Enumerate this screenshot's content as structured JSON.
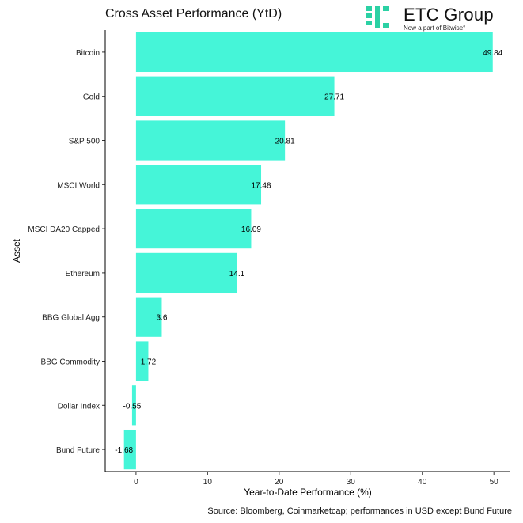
{
  "header": {
    "title": "Cross Asset Performance (YtD)",
    "logo_name": "ETC Group",
    "logo_tagline": "Now a part of Bitwise°",
    "brand_color": "#2bd1a4"
  },
  "footer": {
    "source": "Source: Bloomberg, Coinmarketcap; performances in USD except Bund Future"
  },
  "chart_data": {
    "type": "bar",
    "orientation": "horizontal",
    "title": "Cross Asset Performance (YtD)",
    "xlabel": "Year-to-Date Performance (%)",
    "ylabel": "Asset",
    "categories": [
      "Bitcoin",
      "Gold",
      "S&P 500",
      "MSCI World",
      "MSCI DA20 Capped",
      "Ethereum",
      "BBG Global Agg",
      "BBG Commodity",
      "Dollar Index",
      "Bund Future"
    ],
    "values": [
      49.84,
      27.71,
      20.81,
      17.48,
      16.09,
      14.1,
      3.6,
      1.72,
      -0.55,
      -1.68
    ],
    "value_labels": [
      "49.84",
      "27.71",
      "20.81",
      "17.48",
      "16.09",
      "14.1",
      "3.6",
      "1.72",
      "-0.55",
      "-1.68"
    ],
    "xlim": [
      -4.3,
      52.3
    ],
    "xticks": [
      0,
      10,
      20,
      30,
      40,
      50
    ],
    "bar_color": "#45f5d8",
    "grid": false,
    "legend": "none"
  }
}
